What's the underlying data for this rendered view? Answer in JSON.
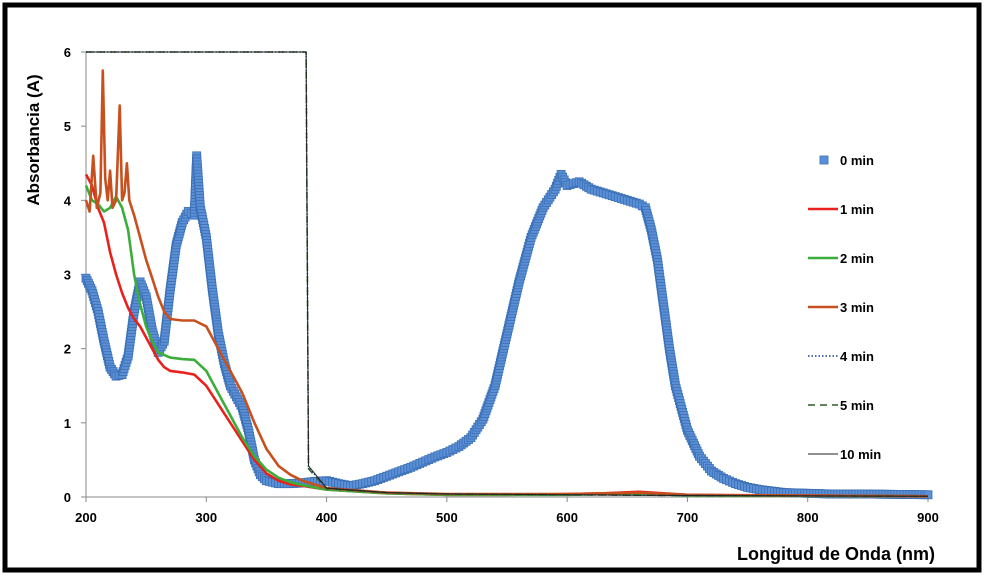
{
  "chart_data": {
    "type": "scatter",
    "title": "",
    "xlabel": "Longitud de Onda (nm)",
    "ylabel": "Absorbancia (A)",
    "xlim": [
      200,
      900
    ],
    "ylim": [
      0,
      6
    ],
    "xticks": [
      200,
      300,
      400,
      500,
      600,
      700,
      800,
      900
    ],
    "yticks": [
      0,
      1,
      2,
      3,
      4,
      5,
      6
    ],
    "grid": false,
    "legend_position": "right",
    "series": [
      {
        "name": "0 min",
        "style": "markers",
        "color": "#5b8fd6",
        "points": [
          [
            200,
            2.95
          ],
          [
            205,
            2.78
          ],
          [
            210,
            2.5
          ],
          [
            215,
            2.1
          ],
          [
            220,
            1.75
          ],
          [
            225,
            1.63
          ],
          [
            230,
            1.65
          ],
          [
            235,
            1.9
          ],
          [
            240,
            2.5
          ],
          [
            245,
            2.9
          ],
          [
            250,
            2.7
          ],
          [
            255,
            2.25
          ],
          [
            260,
            1.95
          ],
          [
            265,
            2.1
          ],
          [
            270,
            2.8
          ],
          [
            275,
            3.4
          ],
          [
            280,
            3.7
          ],
          [
            285,
            3.85
          ],
          [
            290,
            3.8
          ],
          [
            292,
            4.6
          ],
          [
            295,
            3.9
          ],
          [
            300,
            3.5
          ],
          [
            305,
            2.8
          ],
          [
            310,
            2.2
          ],
          [
            315,
            1.8
          ],
          [
            320,
            1.5
          ],
          [
            325,
            1.35
          ],
          [
            330,
            1.2
          ],
          [
            335,
            0.9
          ],
          [
            340,
            0.5
          ],
          [
            345,
            0.3
          ],
          [
            350,
            0.22
          ],
          [
            360,
            0.18
          ],
          [
            370,
            0.18
          ],
          [
            380,
            0.19
          ],
          [
            390,
            0.21
          ],
          [
            400,
            0.22
          ],
          [
            410,
            0.18
          ],
          [
            420,
            0.15
          ],
          [
            430,
            0.18
          ],
          [
            440,
            0.22
          ],
          [
            450,
            0.28
          ],
          [
            460,
            0.34
          ],
          [
            470,
            0.4
          ],
          [
            480,
            0.47
          ],
          [
            490,
            0.54
          ],
          [
            500,
            0.6
          ],
          [
            510,
            0.68
          ],
          [
            520,
            0.8
          ],
          [
            530,
            1.05
          ],
          [
            540,
            1.5
          ],
          [
            550,
            2.2
          ],
          [
            560,
            2.9
          ],
          [
            570,
            3.5
          ],
          [
            580,
            3.9
          ],
          [
            590,
            4.15
          ],
          [
            595,
            4.35
          ],
          [
            600,
            4.2
          ],
          [
            610,
            4.25
          ],
          [
            620,
            4.15
          ],
          [
            630,
            4.1
          ],
          [
            640,
            4.05
          ],
          [
            650,
            4.0
          ],
          [
            660,
            3.95
          ],
          [
            665,
            3.9
          ],
          [
            670,
            3.6
          ],
          [
            675,
            3.2
          ],
          [
            680,
            2.6
          ],
          [
            685,
            2.0
          ],
          [
            690,
            1.5
          ],
          [
            700,
            0.9
          ],
          [
            710,
            0.55
          ],
          [
            720,
            0.35
          ],
          [
            730,
            0.25
          ],
          [
            740,
            0.18
          ],
          [
            750,
            0.13
          ],
          [
            760,
            0.1
          ],
          [
            770,
            0.08
          ],
          [
            780,
            0.06
          ],
          [
            800,
            0.05
          ],
          [
            820,
            0.04
          ],
          [
            850,
            0.04
          ],
          [
            900,
            0.03
          ]
        ]
      },
      {
        "name": "1 min",
        "style": "solid",
        "color": "#e8211e",
        "points": [
          [
            200,
            4.35
          ],
          [
            205,
            4.2
          ],
          [
            210,
            3.9
          ],
          [
            215,
            3.7
          ],
          [
            220,
            3.3
          ],
          [
            225,
            3.0
          ],
          [
            230,
            2.75
          ],
          [
            235,
            2.55
          ],
          [
            240,
            2.4
          ],
          [
            245,
            2.3
          ],
          [
            250,
            2.15
          ],
          [
            255,
            2.0
          ],
          [
            260,
            1.85
          ],
          [
            265,
            1.75
          ],
          [
            270,
            1.7
          ],
          [
            280,
            1.68
          ],
          [
            290,
            1.65
          ],
          [
            300,
            1.5
          ],
          [
            310,
            1.25
          ],
          [
            320,
            1.0
          ],
          [
            330,
            0.75
          ],
          [
            340,
            0.5
          ],
          [
            350,
            0.32
          ],
          [
            360,
            0.22
          ],
          [
            370,
            0.17
          ],
          [
            380,
            0.15
          ],
          [
            400,
            0.1
          ],
          [
            450,
            0.05
          ],
          [
            500,
            0.03
          ],
          [
            550,
            0.03
          ],
          [
            600,
            0.04
          ],
          [
            630,
            0.05
          ],
          [
            660,
            0.07
          ],
          [
            680,
            0.05
          ],
          [
            700,
            0.03
          ],
          [
            750,
            0.02
          ],
          [
            800,
            0.02
          ],
          [
            900,
            0.01
          ]
        ]
      },
      {
        "name": "2 min",
        "style": "solid",
        "color": "#3cad3a",
        "points": [
          [
            200,
            4.2
          ],
          [
            205,
            4.0
          ],
          [
            210,
            3.95
          ],
          [
            215,
            3.85
          ],
          [
            220,
            3.9
          ],
          [
            225,
            4.05
          ],
          [
            230,
            3.9
          ],
          [
            235,
            3.6
          ],
          [
            240,
            3.0
          ],
          [
            245,
            2.6
          ],
          [
            250,
            2.3
          ],
          [
            255,
            2.1
          ],
          [
            260,
            1.95
          ],
          [
            270,
            1.88
          ],
          [
            280,
            1.86
          ],
          [
            290,
            1.85
          ],
          [
            300,
            1.7
          ],
          [
            310,
            1.4
          ],
          [
            320,
            1.1
          ],
          [
            330,
            0.8
          ],
          [
            340,
            0.55
          ],
          [
            350,
            0.37
          ],
          [
            360,
            0.26
          ],
          [
            370,
            0.2
          ],
          [
            380,
            0.16
          ],
          [
            400,
            0.1
          ],
          [
            450,
            0.05
          ],
          [
            500,
            0.03
          ],
          [
            600,
            0.03
          ],
          [
            660,
            0.05
          ],
          [
            700,
            0.02
          ],
          [
            900,
            0.01
          ]
        ]
      },
      {
        "name": "3 min",
        "style": "solid",
        "color": "#c8501e",
        "points": [
          [
            200,
            4.0
          ],
          [
            203,
            3.85
          ],
          [
            206,
            4.6
          ],
          [
            209,
            3.9
          ],
          [
            212,
            4.1
          ],
          [
            214,
            5.75
          ],
          [
            216,
            4.3
          ],
          [
            218,
            4.0
          ],
          [
            220,
            4.4
          ],
          [
            222,
            3.9
          ],
          [
            225,
            4.0
          ],
          [
            228,
            5.28
          ],
          [
            230,
            4.0
          ],
          [
            232,
            4.1
          ],
          [
            234,
            4.5
          ],
          [
            236,
            4.0
          ],
          [
            240,
            3.8
          ],
          [
            245,
            3.5
          ],
          [
            250,
            3.2
          ],
          [
            255,
            2.95
          ],
          [
            260,
            2.7
          ],
          [
            265,
            2.5
          ],
          [
            270,
            2.4
          ],
          [
            280,
            2.38
          ],
          [
            290,
            2.38
          ],
          [
            300,
            2.3
          ],
          [
            310,
            2.0
          ],
          [
            320,
            1.7
          ],
          [
            330,
            1.4
          ],
          [
            340,
            1.0
          ],
          [
            350,
            0.65
          ],
          [
            360,
            0.42
          ],
          [
            370,
            0.3
          ],
          [
            380,
            0.22
          ],
          [
            400,
            0.12
          ],
          [
            450,
            0.06
          ],
          [
            500,
            0.04
          ],
          [
            600,
            0.04
          ],
          [
            660,
            0.06
          ],
          [
            700,
            0.03
          ],
          [
            900,
            0.01
          ]
        ]
      },
      {
        "name": "4 min",
        "style": "dotted",
        "color": "#1f3f8c",
        "points": [
          [
            200,
            6
          ],
          [
            383,
            6
          ],
          [
            385,
            0.4
          ],
          [
            400,
            0.12
          ],
          [
            450,
            0.06
          ],
          [
            500,
            0.04
          ],
          [
            600,
            0.03
          ],
          [
            700,
            0.02
          ],
          [
            900,
            0.01
          ]
        ]
      },
      {
        "name": "5 min",
        "style": "dashed",
        "color": "#2e5b25",
        "points": [
          [
            200,
            6
          ],
          [
            383,
            6
          ],
          [
            385,
            0.38
          ],
          [
            400,
            0.11
          ],
          [
            450,
            0.06
          ],
          [
            500,
            0.04
          ],
          [
            600,
            0.03
          ],
          [
            700,
            0.02
          ],
          [
            900,
            0.01
          ]
        ]
      },
      {
        "name": "10 min",
        "style": "thin",
        "color": "#222222",
        "points": [
          [
            200,
            6
          ],
          [
            383,
            6
          ],
          [
            385,
            0.42
          ],
          [
            400,
            0.12
          ],
          [
            450,
            0.06
          ],
          [
            500,
            0.04
          ],
          [
            600,
            0.03
          ],
          [
            700,
            0.02
          ],
          [
            900,
            0.01
          ]
        ]
      }
    ]
  }
}
